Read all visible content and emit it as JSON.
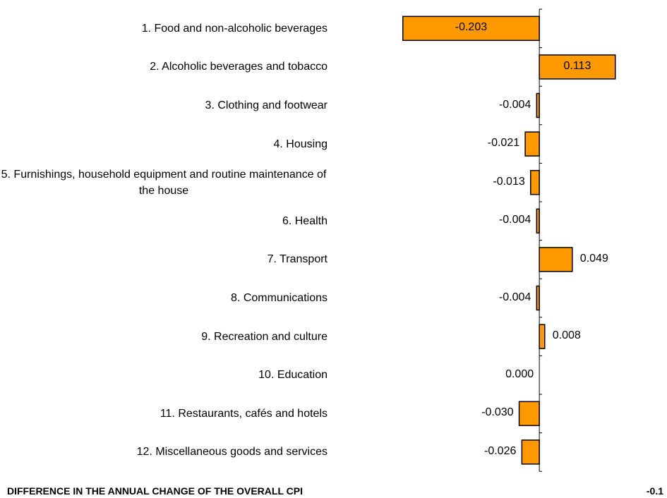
{
  "chart_data": {
    "type": "bar",
    "orientation": "horizontal",
    "categories": [
      "1. Food and non-alcoholic beverages",
      "2. Alcoholic beverages and tobacco",
      "3. Clothing and footwear",
      "4. Housing",
      "5. Furnishings, household equipment and routine maintenance of the house",
      "6. Health",
      "7. Transport",
      "8. Communications",
      "9. Recreation and culture",
      "10. Education",
      "11. Restaurants, cafés and hotels",
      "12. Miscellaneous goods and services"
    ],
    "values": [
      -0.203,
      0.113,
      -0.004,
      -0.021,
      -0.013,
      -0.004,
      0.049,
      -0.004,
      0.008,
      0.0,
      -0.03,
      -0.026
    ],
    "value_labels": [
      "-0.203",
      "0.113",
      "-0.004",
      "-0.021",
      "-0.013",
      "-0.004",
      "0.049",
      "-0.004",
      "0.008",
      "0.000",
      "-0.030",
      "-0.026"
    ],
    "color": "#ff9900",
    "xlim": [
      -0.25,
      0.15
    ],
    "footer": {
      "label": "DIFFERENCE IN THE ANNUAL CHANGE OF THE OVERALL CPI",
      "value": -0.1
    }
  }
}
